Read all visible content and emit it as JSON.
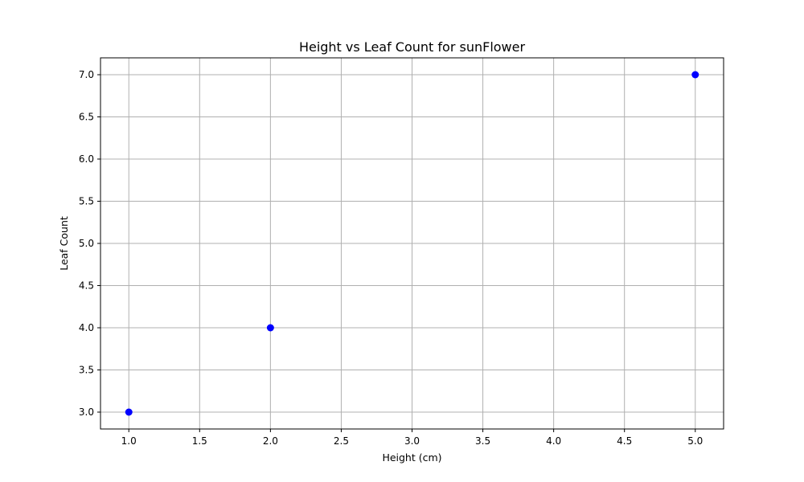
{
  "chart_data": {
    "type": "scatter",
    "title": "Height vs Leaf Count for sunFlower",
    "xlabel": "Height (cm)",
    "ylabel": "Leaf Count",
    "xlim": [
      0.8,
      5.2
    ],
    "ylim": [
      2.8,
      7.2
    ],
    "xticks": [
      "1.0",
      "1.5",
      "2.0",
      "2.5",
      "3.0",
      "3.5",
      "4.0",
      "4.5",
      "5.0"
    ],
    "yticks": [
      "3.0",
      "3.5",
      "4.0",
      "4.5",
      "5.0",
      "5.5",
      "6.0",
      "6.5",
      "7.0"
    ],
    "grid": true,
    "points": [
      {
        "x": 1.0,
        "y": 3.0
      },
      {
        "x": 2.0,
        "y": 4.0
      },
      {
        "x": 5.0,
        "y": 7.0
      }
    ],
    "marker_color": "#0000ff",
    "grid_color": "#b0b0b0"
  }
}
